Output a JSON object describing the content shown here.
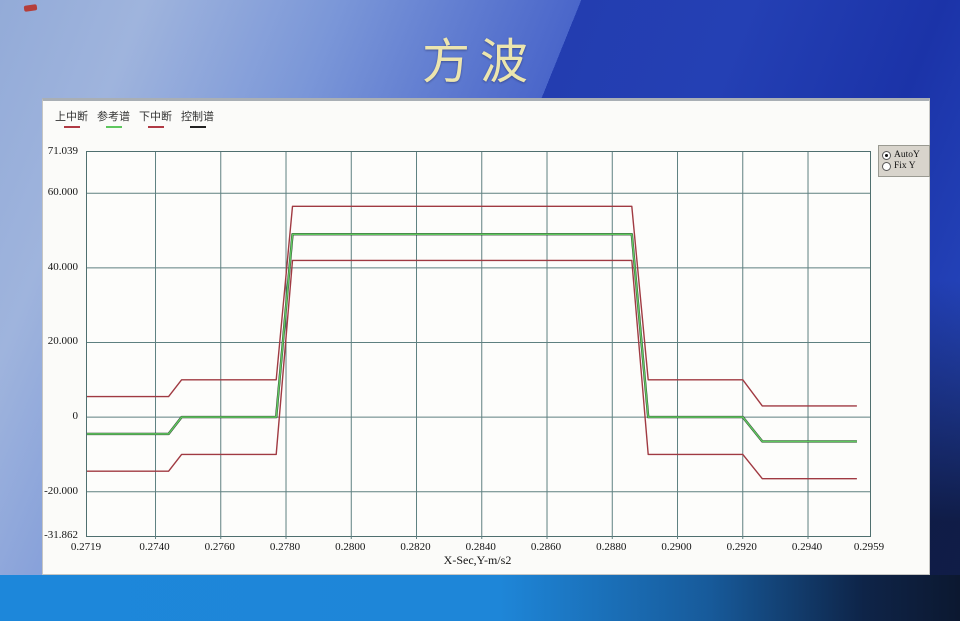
{
  "slide": {
    "title": "方波"
  },
  "legend": {
    "items": [
      {
        "label": "上中断",
        "color": "#b03a44"
      },
      {
        "label": "参考谱",
        "color": "#5ec75e"
      },
      {
        "label": "下中断",
        "color": "#b03a44"
      },
      {
        "label": "控制谱",
        "color": "#222222"
      }
    ]
  },
  "controls": {
    "radio_group": [
      {
        "label": "AutoY",
        "selected": true
      },
      {
        "label": "Fix Y",
        "selected": false
      }
    ]
  },
  "chart_data": {
    "type": "line",
    "title": "方波",
    "xlabel": "X-Sec,Y-m/s2",
    "ylabel": "",
    "xlim": [
      0.2719,
      0.2959
    ],
    "ylim": [
      -31.862,
      71.039
    ],
    "grid": true,
    "grid_color": "#5e8080",
    "yticks": [
      {
        "v": 71.039,
        "label": "71.039"
      },
      {
        "v": 60.0,
        "label": "60.000"
      },
      {
        "v": 40.0,
        "label": "40.000"
      },
      {
        "v": 20.0,
        "label": "20.000"
      },
      {
        "v": 0.0,
        "label": "0"
      },
      {
        "v": -20.0,
        "label": "-20.000"
      },
      {
        "v": -31.862,
        "label": "-31.862"
      }
    ],
    "xticks": [
      {
        "v": 0.2719,
        "label": "0.2719"
      },
      {
        "v": 0.274,
        "label": "0.2740"
      },
      {
        "v": 0.276,
        "label": "0.2760"
      },
      {
        "v": 0.278,
        "label": "0.2780"
      },
      {
        "v": 0.28,
        "label": "0.2800"
      },
      {
        "v": 0.282,
        "label": "0.2820"
      },
      {
        "v": 0.284,
        "label": "0.2840"
      },
      {
        "v": 0.286,
        "label": "0.2860"
      },
      {
        "v": 0.288,
        "label": "0.2880"
      },
      {
        "v": 0.29,
        "label": "0.2900"
      },
      {
        "v": 0.292,
        "label": "0.2920"
      },
      {
        "v": 0.294,
        "label": "0.2940"
      },
      {
        "v": 0.2959,
        "label": "0.2959"
      }
    ],
    "grid_x": [
      0.274,
      0.276,
      0.278,
      0.28,
      0.282,
      0.284,
      0.286,
      0.288,
      0.29,
      0.292,
      0.294
    ],
    "grid_y": [
      60,
      40,
      20,
      0,
      -20
    ],
    "series": [
      {
        "name": "控制谱",
        "color": "#2a2a2a",
        "width": 2.4,
        "points": [
          [
            0.2719,
            -4.5
          ],
          [
            0.2744,
            -4.5
          ],
          [
            0.2748,
            0
          ],
          [
            0.2777,
            0
          ],
          [
            0.2782,
            49
          ],
          [
            0.2886,
            49
          ],
          [
            0.2891,
            0
          ],
          [
            0.292,
            0
          ],
          [
            0.2926,
            -6.5
          ],
          [
            0.2955,
            -6.5
          ]
        ]
      },
      {
        "name": "上中断",
        "color": "#a03a42",
        "width": 1.4,
        "points": [
          [
            0.2719,
            5.5
          ],
          [
            0.2744,
            5.5
          ],
          [
            0.2748,
            10
          ],
          [
            0.2777,
            10
          ],
          [
            0.2782,
            56.5
          ],
          [
            0.2886,
            56.5
          ],
          [
            0.2891,
            10
          ],
          [
            0.292,
            10
          ],
          [
            0.2926,
            3
          ],
          [
            0.2955,
            3
          ]
        ]
      },
      {
        "name": "下中断",
        "color": "#a03a42",
        "width": 1.4,
        "points": [
          [
            0.2719,
            -14.5
          ],
          [
            0.2744,
            -14.5
          ],
          [
            0.2748,
            -10
          ],
          [
            0.2777,
            -10
          ],
          [
            0.2782,
            42
          ],
          [
            0.2886,
            42
          ],
          [
            0.2891,
            -10
          ],
          [
            0.292,
            -10
          ],
          [
            0.2926,
            -16.5
          ],
          [
            0.2955,
            -16.5
          ]
        ]
      },
      {
        "name": "参考谱",
        "color": "#5ec75e",
        "width": 1.6,
        "points": [
          [
            0.2719,
            -4.5
          ],
          [
            0.2744,
            -4.5
          ],
          [
            0.2748,
            0
          ],
          [
            0.2777,
            0
          ],
          [
            0.2782,
            49
          ],
          [
            0.2886,
            49
          ],
          [
            0.2891,
            0
          ],
          [
            0.292,
            0
          ],
          [
            0.2926,
            -6.5
          ],
          [
            0.2955,
            -6.5
          ]
        ]
      }
    ]
  }
}
